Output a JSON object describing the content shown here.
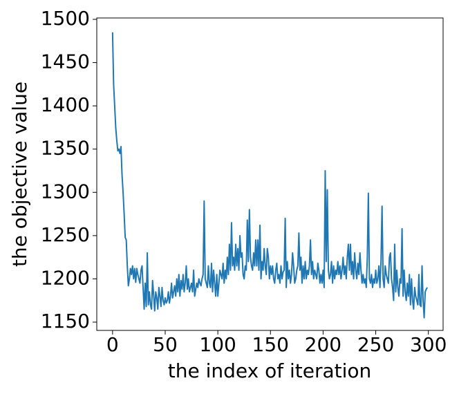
{
  "chart_data": {
    "type": "line",
    "xlabel": "the index of iteration",
    "ylabel": "the objective value",
    "color": "#1f77b4",
    "xlim": [
      -15,
      314
    ],
    "ylim": [
      1140.4,
      1501.6
    ],
    "xticks": [
      0,
      50,
      100,
      150,
      200,
      250,
      300
    ],
    "yticks": [
      1150,
      1200,
      1250,
      1300,
      1350,
      1400,
      1450,
      1500
    ],
    "x": [
      0,
      1,
      2,
      3,
      4,
      5,
      6,
      7,
      8,
      9,
      10,
      11,
      12,
      13,
      14,
      15,
      16,
      17,
      18,
      19,
      20,
      21,
      22,
      23,
      24,
      25,
      26,
      27,
      28,
      29,
      30,
      31,
      32,
      33,
      34,
      35,
      36,
      37,
      38,
      39,
      40,
      41,
      42,
      43,
      44,
      45,
      46,
      47,
      48,
      49,
      50,
      51,
      52,
      53,
      54,
      55,
      56,
      57,
      58,
      59,
      60,
      61,
      62,
      63,
      64,
      65,
      66,
      67,
      68,
      69,
      70,
      71,
      72,
      73,
      74,
      75,
      76,
      77,
      78,
      79,
      80,
      81,
      82,
      83,
      84,
      85,
      86,
      87,
      88,
      89,
      90,
      91,
      92,
      93,
      94,
      95,
      96,
      97,
      98,
      99,
      100,
      101,
      102,
      103,
      104,
      105,
      106,
      107,
      108,
      109,
      110,
      111,
      112,
      113,
      114,
      115,
      116,
      117,
      118,
      119,
      120,
      121,
      122,
      123,
      124,
      125,
      126,
      127,
      128,
      129,
      130,
      131,
      132,
      133,
      134,
      135,
      136,
      137,
      138,
      139,
      140,
      141,
      142,
      143,
      144,
      145,
      146,
      147,
      148,
      149,
      150,
      151,
      152,
      153,
      154,
      155,
      156,
      157,
      158,
      159,
      160,
      161,
      162,
      163,
      164,
      165,
      166,
      167,
      168,
      169,
      170,
      171,
      172,
      173,
      174,
      175,
      176,
      177,
      178,
      179,
      180,
      181,
      182,
      183,
      184,
      185,
      186,
      187,
      188,
      189,
      190,
      191,
      192,
      193,
      194,
      195,
      196,
      197,
      198,
      199,
      200,
      201,
      202,
      203,
      204,
      205,
      206,
      207,
      208,
      209,
      210,
      211,
      212,
      213,
      214,
      215,
      216,
      217,
      218,
      219,
      220,
      221,
      222,
      223,
      224,
      225,
      226,
      227,
      228,
      229,
      230,
      231,
      232,
      233,
      234,
      235,
      236,
      237,
      238,
      239,
      240,
      241,
      242,
      243,
      244,
      245,
      246,
      247,
      248,
      249,
      250,
      251,
      252,
      253,
      254,
      255,
      256,
      257,
      258,
      259,
      260,
      261,
      262,
      263,
      264,
      265,
      266,
      267,
      268,
      269,
      270,
      271,
      272,
      273,
      274,
      275,
      276,
      277,
      278,
      279,
      280,
      281,
      282,
      283,
      284,
      285,
      286,
      287,
      288,
      289,
      290,
      291,
      292,
      293,
      294,
      295,
      296,
      297,
      298,
      299
    ],
    "values": [
      1485,
      1425,
      1400,
      1375,
      1360,
      1348,
      1350,
      1345,
      1353,
      1320,
      1300,
      1275,
      1248,
      1245,
      1215,
      1192,
      1200,
      1212,
      1205,
      1215,
      1200,
      1212,
      1196,
      1212,
      1205,
      1200,
      1195,
      1210,
      1215,
      1190,
      1165,
      1195,
      1168,
      1230,
      1170,
      1185,
      1170,
      1165,
      1198,
      1182,
      1163,
      1185,
      1178,
      1165,
      1190,
      1180,
      1168,
      1190,
      1175,
      1170,
      1178,
      1172,
      1175,
      1185,
      1172,
      1180,
      1195,
      1178,
      1185,
      1192,
      1180,
      1200,
      1185,
      1205,
      1180,
      1198,
      1188,
      1205,
      1185,
      1195,
      1215,
      1188,
      1200,
      1185,
      1190,
      1195,
      1185,
      1210,
      1180,
      1188,
      1195,
      1190,
      1200,
      1195,
      1192,
      1200,
      1205,
      1290,
      1200,
      1195,
      1190,
      1215,
      1195,
      1190,
      1218,
      1185,
      1210,
      1195,
      1180,
      1205,
      1180,
      1195,
      1210,
      1205,
      1200,
      1218,
      1195,
      1210,
      1200,
      1225,
      1205,
      1240,
      1210,
      1265,
      1215,
      1225,
      1210,
      1240,
      1215,
      1235,
      1210,
      1250,
      1225,
      1230,
      1205,
      1200,
      1215,
      1210,
      1268,
      1220,
      1280,
      1225,
      1215,
      1210,
      1230,
      1215,
      1245,
      1215,
      1245,
      1210,
      1262,
      1200,
      1220,
      1210,
      1235,
      1215,
      1205,
      1235,
      1225,
      1200,
      1215,
      1205,
      1215,
      1200,
      1195,
      1210,
      1218,
      1200,
      1205,
      1195,
      1215,
      1200,
      1208,
      1210,
      1270,
      1190,
      1220,
      1200,
      1210,
      1195,
      1205,
      1230,
      1215,
      1195,
      1200,
      1210,
      1215,
      1253,
      1210,
      1225,
      1195,
      1215,
      1200,
      1220,
      1200,
      1210,
      1205,
      1215,
      1245,
      1205,
      1220,
      1200,
      1210,
      1205,
      1200,
      1218,
      1210,
      1195,
      1205,
      1195,
      1210,
      1190,
      1325,
      1220,
      1303,
      1210,
      1200,
      1205,
      1220,
      1195,
      1215,
      1200,
      1210,
      1205,
      1220,
      1205,
      1215,
      1200,
      1210,
      1225,
      1205,
      1215,
      1200,
      1225,
      1240,
      1210,
      1240,
      1205,
      1220,
      1200,
      1230,
      1210,
      1200,
      1218,
      1205,
      1230,
      1210,
      1195,
      1205,
      1195,
      1200,
      1190,
      1225,
      1299,
      1200,
      1195,
      1205,
      1190,
      1200,
      1195,
      1210,
      1195,
      1200,
      1215,
      1190,
      1220,
      1284,
      1200,
      1190,
      1215,
      1205,
      1200,
      1195,
      1225,
      1230,
      1200,
      1190,
      1175,
      1240,
      1185,
      1210,
      1190,
      1180,
      1200,
      1195,
      1258,
      1180,
      1210,
      1185,
      1175,
      1195,
      1180,
      1205,
      1170,
      1200,
      1175,
      1165,
      1190,
      1180,
      1175,
      1170,
      1205,
      1170,
      1168,
      1215,
      1175,
      1155,
      1185,
      1188,
      1190
    ]
  }
}
